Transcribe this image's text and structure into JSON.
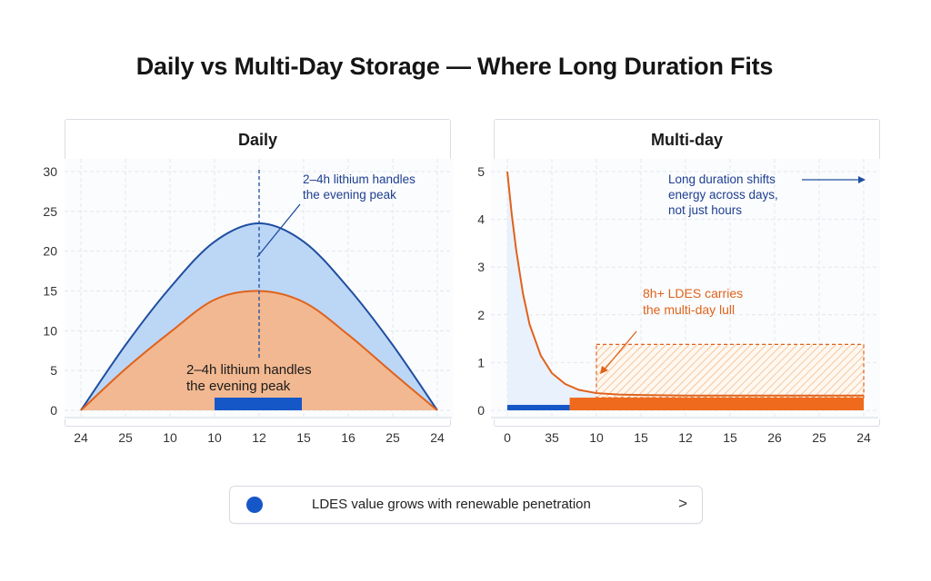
{
  "page": {
    "title": "Daily vs Multi-Day Storage — Where Long Duration Fits"
  },
  "footer": {
    "text": "LDES value grows with renewable penetration",
    "chevron": ">",
    "dot_color": "#1657c8",
    "dot_icon": "circle-bullet-icon",
    "chevron_icon": "chevron-right-icon"
  },
  "chart_data": [
    {
      "type": "area",
      "title": "Daily",
      "xlabel": "",
      "ylabel": "",
      "categories": [
        "24",
        "25",
        "10",
        "10",
        "12",
        "15",
        "16",
        "25",
        "24"
      ],
      "ylim": [
        0,
        30
      ],
      "yticks": [
        0,
        5,
        10,
        15,
        20,
        25,
        30
      ],
      "grid": true,
      "series": [
        {
          "values": [
            0,
            8.2,
            15.4,
            21.2,
            23.5,
            21.2,
            15.4,
            8.2,
            0
          ],
          "color": "#1f4ea0",
          "fill": "#bcd6f6"
        },
        {
          "values": [
            0,
            5.2,
            9.8,
            13.9,
            15,
            13.6,
            9.5,
            4.7,
            0
          ],
          "color": "#e0621a",
          "fill": "#f2b891"
        }
      ],
      "bar": {
        "x_start": "10",
        "x_end": "15",
        "color": "#1657c8"
      },
      "reference_line": {
        "x": "12",
        "style": "dashed",
        "color": "#1f4ea0"
      },
      "annotations": [
        "2–4h lithium handles the evening peak",
        "2–4h lithium handles the evening peak"
      ]
    },
    {
      "type": "line",
      "title": "Multi-day",
      "xlabel": "",
      "ylabel": "",
      "categories": [
        "0",
        "35",
        "10",
        "15",
        "12",
        "15",
        "26",
        "25",
        "24"
      ],
      "ylim": [
        0,
        5
      ],
      "yticks": [
        0,
        1,
        2,
        3,
        4,
        5
      ],
      "grid": true,
      "series": [
        {
          "x": [
            0,
            0.1,
            0.2,
            0.35,
            0.5,
            0.75,
            1,
            1.3,
            1.6,
            2,
            2.5,
            3,
            4,
            5,
            6,
            7,
            8
          ],
          "values": [
            5,
            4.1,
            3.35,
            2.45,
            1.8,
            1.15,
            0.78,
            0.55,
            0.43,
            0.36,
            0.33,
            0.32,
            0.31,
            0.31,
            0.31,
            0.31,
            0.31
          ],
          "color": "#e0621a",
          "fill": "#e8f1fc"
        }
      ],
      "bars": [
        {
          "x_start": 0,
          "x_end": 1.4,
          "color": "#1657c8"
        },
        {
          "x_start": 1.4,
          "x_end": 8,
          "color": "#ef6a1c"
        }
      ],
      "hatched_region": {
        "x_start": 2,
        "x_end": 8,
        "y_top": 1.38,
        "color": "#e0621a"
      },
      "annotations": [
        "Long duration shifts energy across days, not just hours",
        "8h+ LDES carries the multi-day lull"
      ]
    }
  ],
  "labels": {
    "daily_callout_top": [
      "2–4h lithium handles",
      "the evening peak"
    ],
    "daily_callout_mid": [
      "2–4h lithium handles",
      "the evening peak"
    ],
    "multi_callout_top": [
      "Long duration shifts",
      "energy across days,",
      "not just hours"
    ],
    "multi_callout_mid": [
      "8h+ LDES carries",
      "the multi-day lull"
    ]
  }
}
